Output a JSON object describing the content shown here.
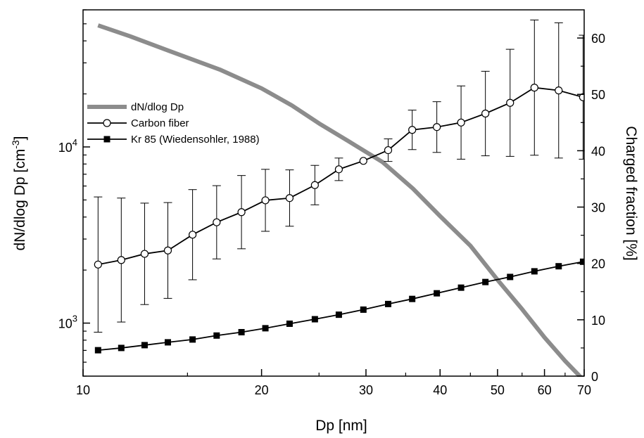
{
  "chart_data": {
    "type": "line",
    "xlabel": "Dp [nm]",
    "ylabel_left": "dN/dlog Dp [cm",
    "ylabel_left_exp": "-3",
    "ylabel_left_close": "]",
    "ylabel_right": "Charged fraction [%]",
    "x_scale": "log",
    "x_range": [
      10,
      70
    ],
    "x_ticks": [
      10,
      20,
      30,
      40,
      50,
      60,
      70
    ],
    "x_tick_labels": [
      "10",
      "20",
      "30",
      "40",
      "50",
      "60",
      "70"
    ],
    "y_left_scale": "log",
    "y_left_range": [
      500,
      60000
    ],
    "y_left_ticks": [
      {
        "value": 1000,
        "base": "10",
        "exp": "3"
      },
      {
        "value": 10000,
        "base": "10",
        "exp": "4"
      }
    ],
    "y_right_range": [
      0,
      65
    ],
    "y_right_ticks": [
      0,
      10,
      20,
      30,
      40,
      50,
      60
    ],
    "y_right_tick_labels": [
      "0",
      "10",
      "20",
      "30",
      "40",
      "50",
      "60"
    ],
    "legend_position": "top-left",
    "grid": false,
    "series": [
      {
        "name": "dN/dlog Dp",
        "axis": "left",
        "style": "thick-line",
        "color": "#8c8c8c",
        "x": [
          10.6,
          12,
          14,
          17,
          20,
          22.5,
          25,
          28,
          32,
          36,
          40,
          45,
          50,
          55,
          60,
          65,
          69
        ],
        "y": [
          49000,
          42500,
          35000,
          27500,
          21500,
          17200,
          13600,
          10800,
          8200,
          5800,
          4050,
          2750,
          1760,
          1200,
          830,
          610,
          495
        ]
      },
      {
        "name": "Carbon fiber",
        "axis": "right",
        "style": "open-circle",
        "color": "#000000",
        "x": [
          10.6,
          11.6,
          12.7,
          13.9,
          15.3,
          16.8,
          18.5,
          20.3,
          22.3,
          24.6,
          27.0,
          29.7,
          32.7,
          35.9,
          39.5,
          43.4,
          47.7,
          52.5,
          57.7,
          63.4,
          69.7
        ],
        "y": [
          19.8,
          20.6,
          21.7,
          22.3,
          25.1,
          27.3,
          29.1,
          31.2,
          31.6,
          33.9,
          36.7,
          38.2,
          40.1,
          43.7,
          44.2,
          45.0,
          46.6,
          48.5,
          51.2,
          50.7,
          49.5
        ],
        "err": [
          12.0,
          11.0,
          9.0,
          8.5,
          8.0,
          6.5,
          6.5,
          5.5,
          5.0,
          3.5,
          2.0,
          0.0,
          2.0,
          3.5,
          4.5,
          6.5,
          7.5,
          9.5,
          12.0,
          12.0,
          11.0
        ]
      },
      {
        "name": "Kr 85 (Wiedensohler, 1988)",
        "axis": "right",
        "style": "filled-square",
        "color": "#000000",
        "x": [
          10.6,
          11.6,
          12.7,
          13.9,
          15.3,
          16.8,
          18.5,
          20.3,
          22.3,
          24.6,
          27.0,
          29.7,
          32.7,
          35.9,
          39.5,
          43.4,
          47.7,
          52.5,
          57.7,
          63.4,
          69.7
        ],
        "y": [
          4.6,
          5.0,
          5.5,
          6.0,
          6.5,
          7.2,
          7.8,
          8.5,
          9.3,
          10.1,
          10.9,
          11.8,
          12.8,
          13.7,
          14.7,
          15.7,
          16.7,
          17.6,
          18.6,
          19.5,
          20.3
        ]
      }
    ]
  }
}
